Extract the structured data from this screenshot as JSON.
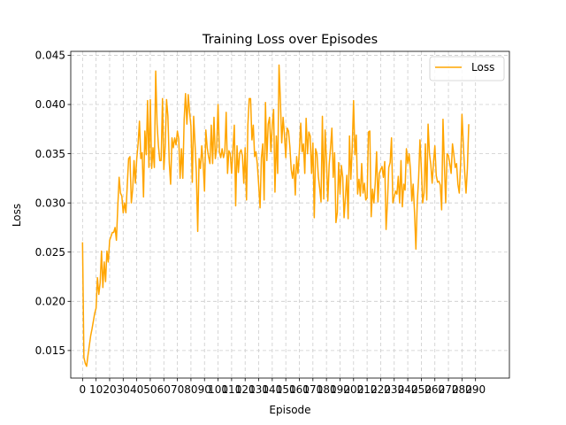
{
  "chart_data": {
    "type": "line",
    "title": "Training Loss over Episodes",
    "xlabel": "Episode",
    "ylabel": "Loss",
    "xlim": [
      -8.7,
      315
    ],
    "ylim": [
      0.0122,
      0.0454
    ],
    "xticks": [
      0,
      10,
      20,
      30,
      40,
      50,
      60,
      70,
      80,
      90,
      100,
      110,
      120,
      130,
      140,
      150,
      160,
      170,
      180,
      190,
      200,
      210,
      220,
      230,
      240,
      250,
      260,
      270,
      280,
      290
    ],
    "yticks": [
      0.015,
      0.02,
      0.025,
      0.03,
      0.035,
      0.04,
      0.045
    ],
    "ytick_labels": [
      "0.015",
      "0.020",
      "0.025",
      "0.030",
      "0.035",
      "0.040",
      "0.045"
    ],
    "grid": true,
    "legend_position": "top-right",
    "colors": {
      "line": "#ffa500",
      "grid": "#cccccc",
      "axis": "#000000"
    },
    "series": [
      {
        "name": "Loss",
        "x_start": 0,
        "x_step": 1,
        "values": [
          0.026,
          0.0143,
          0.0137,
          0.0134,
          0.0145,
          0.0155,
          0.0165,
          0.0172,
          0.018,
          0.0188,
          0.0193,
          0.0224,
          0.0207,
          0.0219,
          0.0251,
          0.0214,
          0.024,
          0.022,
          0.0251,
          0.024,
          0.0262,
          0.0266,
          0.027,
          0.027,
          0.0275,
          0.0262,
          0.0296,
          0.0326,
          0.031,
          0.0307,
          0.029,
          0.03,
          0.029,
          0.0318,
          0.0345,
          0.0347,
          0.03,
          0.0314,
          0.0343,
          0.032,
          0.0345,
          0.036,
          0.0383,
          0.0345,
          0.0351,
          0.0306,
          0.0373,
          0.0349,
          0.0404,
          0.0336,
          0.0405,
          0.0335,
          0.0356,
          0.0336,
          0.0434,
          0.038,
          0.0358,
          0.0343,
          0.0343,
          0.0406,
          0.0334,
          0.0358,
          0.0405,
          0.0388,
          0.0341,
          0.0319,
          0.0366,
          0.0356,
          0.0366,
          0.0359,
          0.0373,
          0.0365,
          0.0325,
          0.0355,
          0.0325,
          0.0385,
          0.0411,
          0.038,
          0.041,
          0.0392,
          0.0378,
          0.0321,
          0.0388,
          0.036,
          0.033,
          0.0271,
          0.0345,
          0.0335,
          0.0358,
          0.034,
          0.0312,
          0.0374,
          0.0356,
          0.0347,
          0.034,
          0.0379,
          0.034,
          0.0387,
          0.0345,
          0.0356,
          0.04,
          0.0352,
          0.0346,
          0.0355,
          0.0346,
          0.0352,
          0.0392,
          0.033,
          0.0353,
          0.035,
          0.033,
          0.0354,
          0.0379,
          0.0297,
          0.0358,
          0.0331,
          0.0351,
          0.0354,
          0.0348,
          0.032,
          0.0356,
          0.0303,
          0.0379,
          0.0406,
          0.0406,
          0.0364,
          0.0379,
          0.0347,
          0.0352,
          0.0339,
          0.0318,
          0.0295,
          0.0346,
          0.036,
          0.0303,
          0.0402,
          0.0343,
          0.038,
          0.0387,
          0.0352,
          0.0379,
          0.0395,
          0.0311,
          0.0368,
          0.033,
          0.044,
          0.0404,
          0.0361,
          0.0387,
          0.0369,
          0.0346,
          0.0376,
          0.0373,
          0.0357,
          0.0334,
          0.0325,
          0.0339,
          0.0308,
          0.0347,
          0.033,
          0.0353,
          0.0381,
          0.0352,
          0.036,
          0.033,
          0.0386,
          0.035,
          0.0372,
          0.0368,
          0.033,
          0.0361,
          0.0285,
          0.0355,
          0.035,
          0.0327,
          0.0315,
          0.0301,
          0.0388,
          0.0304,
          0.0374,
          0.0344,
          0.0302,
          0.0339,
          0.0356,
          0.0376,
          0.0326,
          0.0351,
          0.028,
          0.029,
          0.0341,
          0.0309,
          0.0338,
          0.0326,
          0.0285,
          0.0306,
          0.0328,
          0.0284,
          0.0368,
          0.0324,
          0.0356,
          0.0404,
          0.0349,
          0.0369,
          0.0309,
          0.0324,
          0.0307,
          0.034,
          0.031,
          0.032,
          0.0303,
          0.0305,
          0.0372,
          0.0373,
          0.0286,
          0.0314,
          0.03,
          0.032,
          0.0352,
          0.0301,
          0.033,
          0.0334,
          0.0337,
          0.0326,
          0.0342,
          0.0273,
          0.03,
          0.0336,
          0.0341,
          0.0366,
          0.03,
          0.0306,
          0.0312,
          0.0309,
          0.0327,
          0.03,
          0.0343,
          0.0296,
          0.0319,
          0.0313,
          0.0355,
          0.034,
          0.035,
          0.0333,
          0.0302,
          0.0319,
          0.029,
          0.0253,
          0.03,
          0.0325,
          0.0364,
          0.0336,
          0.03,
          0.031,
          0.036,
          0.0303,
          0.038,
          0.035,
          0.0339,
          0.032,
          0.0341,
          0.0358,
          0.0328,
          0.0321,
          0.0322,
          0.0318,
          0.0293,
          0.0385,
          0.0339,
          0.03,
          0.035,
          0.0348,
          0.034,
          0.033,
          0.036,
          0.0349,
          0.0336,
          0.034,
          0.0319,
          0.031,
          0.034,
          0.039,
          0.036,
          0.0332,
          0.031,
          0.0335,
          0.038
        ]
      }
    ]
  }
}
